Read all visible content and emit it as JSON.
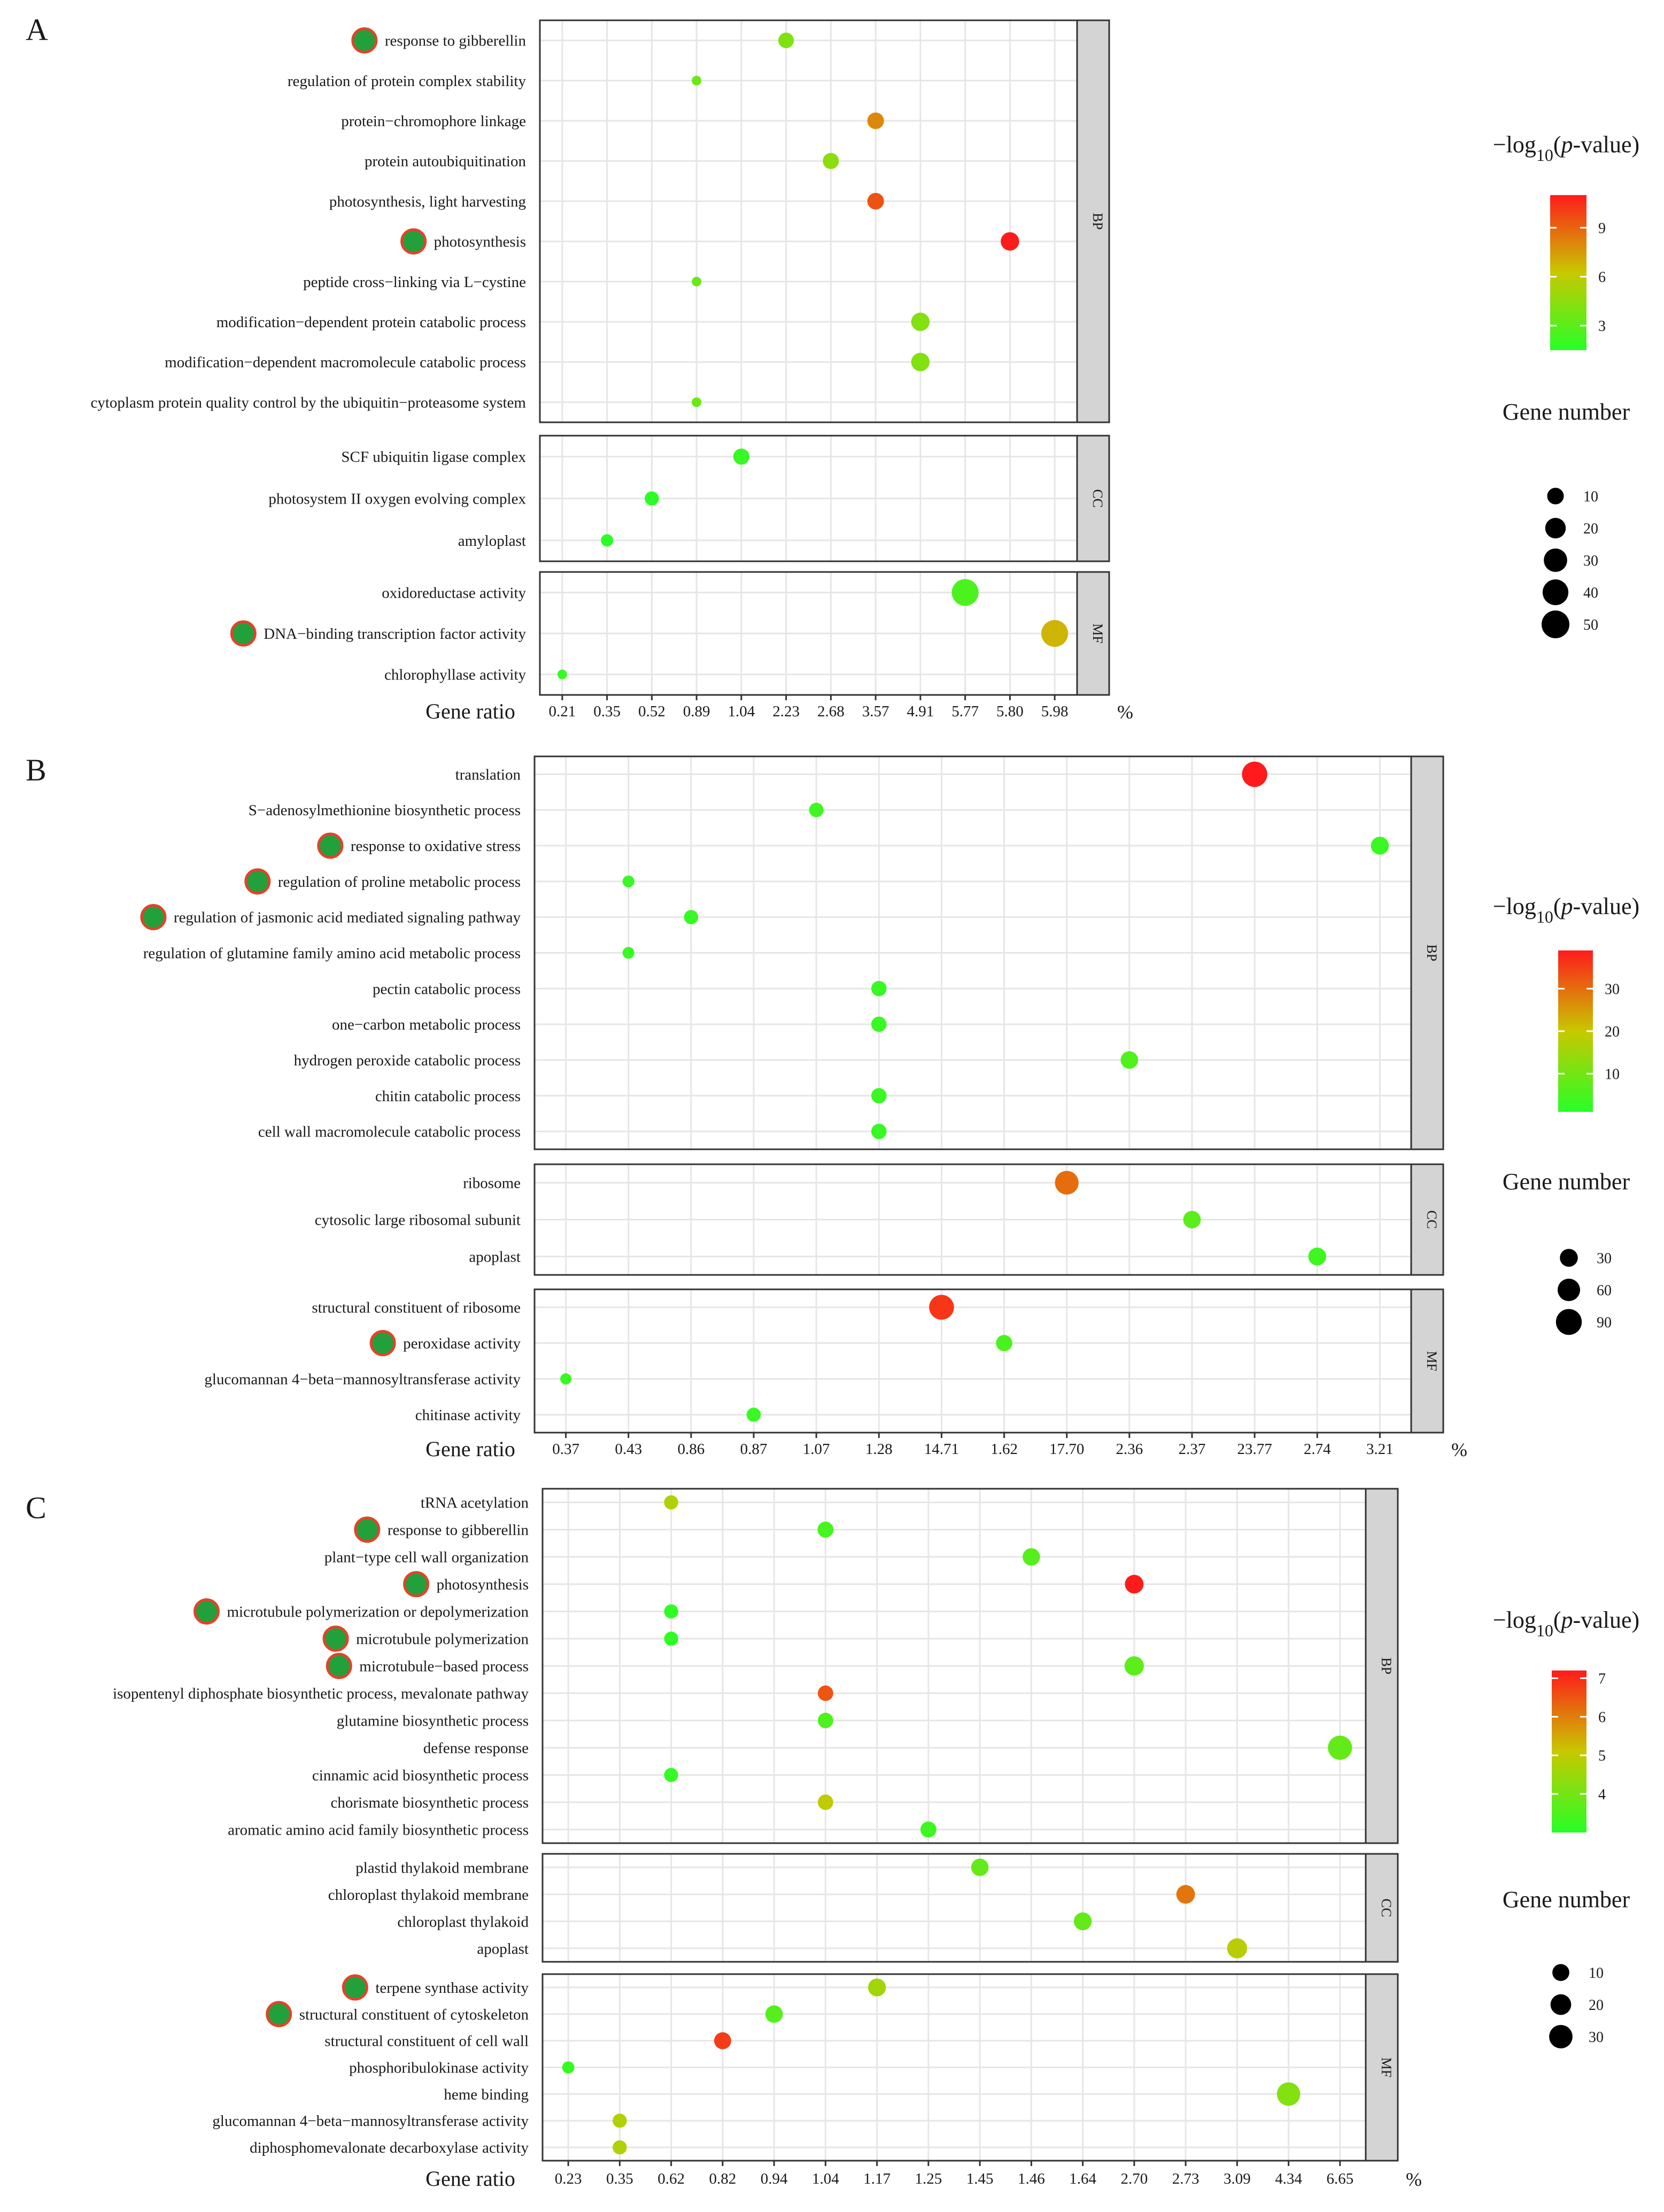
{
  "chart_data": [
    {
      "panel": "A",
      "type": "scatter",
      "xlabel": "Gene ratio",
      "x_unit": "%",
      "x_ticks": [
        "0.21",
        "0.35",
        "0.52",
        "0.89",
        "1.04",
        "2.23",
        "2.68",
        "3.57",
        "4.91",
        "5.77",
        "5.80",
        "5.98"
      ],
      "legend_color_title": "−log10(p-value)",
      "legend_color_ticks": [
        "3",
        "6",
        "9"
      ],
      "color_range": [
        1.5,
        11
      ],
      "legend_size_title": "Gene number",
      "legend_size_ticks": [
        "10",
        "20",
        "30",
        "40",
        "50"
      ],
      "size_range": [
        3,
        50
      ],
      "facets": [
        {
          "label": "BP",
          "terms": [
            {
              "term": "response to gibberellin",
              "ratio": "2.23",
              "p": 4.0,
              "n": 8,
              "marked": true
            },
            {
              "term": "regulation of protein complex stability",
              "ratio": "0.89",
              "p": 3.5,
              "n": 3,
              "marked": false
            },
            {
              "term": "protein−chromophore linkage",
              "ratio": "3.57",
              "p": 8.0,
              "n": 10,
              "marked": false
            },
            {
              "term": "protein autoubiquitination",
              "ratio": "2.68",
              "p": 4.5,
              "n": 9,
              "marked": false
            },
            {
              "term": "photosynthesis, light harvesting",
              "ratio": "3.57",
              "p": 9.5,
              "n": 10,
              "marked": false
            },
            {
              "term": "photosynthesis",
              "ratio": "5.80",
              "p": 11.0,
              "n": 14,
              "marked": true
            },
            {
              "term": "peptide cross−linking via L−cystine",
              "ratio": "0.89",
              "p": 3.5,
              "n": 3,
              "marked": false
            },
            {
              "term": "modification−dependent protein catabolic process",
              "ratio": "4.91",
              "p": 4.2,
              "n": 14,
              "marked": false
            },
            {
              "term": "modification−dependent macromolecule catabolic process",
              "ratio": "4.91",
              "p": 4.2,
              "n": 14,
              "marked": false
            },
            {
              "term": "cytoplasm protein quality control by the ubiquitin−proteasome system",
              "ratio": "0.89",
              "p": 3.5,
              "n": 3,
              "marked": false
            }
          ]
        },
        {
          "label": "CC",
          "terms": [
            {
              "term": "SCF ubiquitin ligase complex",
              "ratio": "1.04",
              "p": 2.0,
              "n": 9,
              "marked": false
            },
            {
              "term": "photosystem II oxygen evolving complex",
              "ratio": "0.52",
              "p": 1.6,
              "n": 6,
              "marked": false
            },
            {
              "term": "amyloplast",
              "ratio": "0.35",
              "p": 1.5,
              "n": 4,
              "marked": false
            }
          ]
        },
        {
          "label": "MF",
          "terms": [
            {
              "term": "oxidoreductase activity",
              "ratio": "5.77",
              "p": 2.6,
              "n": 45,
              "marked": false
            },
            {
              "term": "DNA−binding transcription factor activity",
              "ratio": "5.98",
              "p": 6.8,
              "n": 45,
              "marked": true
            },
            {
              "term": "chlorophyllase activity",
              "ratio": "0.21",
              "p": 2.0,
              "n": 3,
              "marked": false
            }
          ]
        }
      ]
    },
    {
      "panel": "B",
      "type": "scatter",
      "xlabel": "Gene ratio",
      "x_unit": "%",
      "x_ticks": [
        "0.37",
        "0.43",
        "0.86",
        "0.87",
        "1.07",
        "1.28",
        "14.71",
        "1.62",
        "17.70",
        "2.36",
        "2.37",
        "23.77",
        "2.74",
        "3.21"
      ],
      "legend_color_title": "−log10(p-value)",
      "legend_color_ticks": [
        "10",
        "20",
        "30"
      ],
      "color_range": [
        1,
        39
      ],
      "legend_size_title": "Gene number",
      "legend_size_ticks": [
        "30",
        "60",
        "90"
      ],
      "size_range": [
        5,
        110
      ],
      "facets": [
        {
          "label": "BP",
          "terms": [
            {
              "term": "translation",
              "ratio": "23.77",
              "p": 39,
              "n": 85,
              "marked": false
            },
            {
              "term": "S−adenosylmethionine biosynthetic process",
              "ratio": "1.07",
              "p": 4,
              "n": 15,
              "marked": false
            },
            {
              "term": "response to oxidative stress",
              "ratio": "3.21",
              "p": 3,
              "n": 30,
              "marked": true
            },
            {
              "term": "regulation of proline metabolic process",
              "ratio": "0.43",
              "p": 3,
              "n": 8,
              "marked": true
            },
            {
              "term": "regulation of jasmonic acid mediated signaling pathway",
              "ratio": "0.86",
              "p": 3,
              "n": 14,
              "marked": true
            },
            {
              "term": "regulation of glutamine family amino acid metabolic process",
              "ratio": "0.43",
              "p": 3,
              "n": 8,
              "marked": false
            },
            {
              "term": "pectin catabolic process",
              "ratio": "1.28",
              "p": 3,
              "n": 18,
              "marked": false
            },
            {
              "term": "one−carbon metabolic process",
              "ratio": "1.28",
              "p": 3,
              "n": 18,
              "marked": false
            },
            {
              "term": "hydrogen peroxide catabolic process",
              "ratio": "2.36",
              "p": 6,
              "n": 28,
              "marked": false
            },
            {
              "term": "chitin catabolic process",
              "ratio": "1.28",
              "p": 3,
              "n": 18,
              "marked": false
            },
            {
              "term": "cell wall macromolecule catabolic process",
              "ratio": "1.28",
              "p": 3,
              "n": 18,
              "marked": false
            }
          ]
        },
        {
          "label": "CC",
          "terms": [
            {
              "term": "ribosome",
              "ratio": "17.70",
              "p": 30,
              "n": 70,
              "marked": false
            },
            {
              "term": "cytosolic large ribosomal subunit",
              "ratio": "2.37",
              "p": 7,
              "n": 28,
              "marked": false
            },
            {
              "term": "apoplast",
              "ratio": "2.74",
              "p": 4,
              "n": 30,
              "marked": false
            }
          ]
        },
        {
          "label": "MF",
          "terms": [
            {
              "term": "structural constituent of ribosome",
              "ratio": "14.71",
              "p": 36,
              "n": 80,
              "marked": false
            },
            {
              "term": "peroxidase activity",
              "ratio": "1.62",
              "p": 5,
              "n": 22,
              "marked": true
            },
            {
              "term": "glucomannan 4−beta−mannosyltransferase activity",
              "ratio": "0.37",
              "p": 3,
              "n": 7,
              "marked": false
            },
            {
              "term": "chitinase activity",
              "ratio": "0.87",
              "p": 3,
              "n": 14,
              "marked": false
            }
          ]
        }
      ]
    },
    {
      "panel": "C",
      "type": "scatter",
      "xlabel": "Gene ratio",
      "x_unit": "%",
      "x_ticks": [
        "0.23",
        "0.35",
        "0.62",
        "0.82",
        "0.94",
        "1.04",
        "1.17",
        "1.25",
        "1.45",
        "1.46",
        "1.64",
        "2.70",
        "2.73",
        "3.09",
        "4.34",
        "6.65"
      ],
      "legend_color_title": "−log10(p-value)",
      "legend_color_ticks": [
        "4",
        "5",
        "6",
        "7"
      ],
      "color_range": [
        3,
        7.2
      ],
      "legend_size_title": "Gene number",
      "legend_size_ticks": [
        "10",
        "20",
        "30"
      ],
      "size_range": [
        2,
        35
      ],
      "facets": [
        {
          "label": "BP",
          "terms": [
            {
              "term": "tRNA acetylation",
              "ratio": "0.62",
              "p": 4.8,
              "n": 5,
              "marked": false
            },
            {
              "term": "response to gibberellin",
              "ratio": "1.04",
              "p": 3.4,
              "n": 8,
              "marked": true
            },
            {
              "term": "plant−type cell wall organization",
              "ratio": "1.46",
              "p": 3.6,
              "n": 11,
              "marked": false
            },
            {
              "term": "photosynthesis",
              "ratio": "2.70",
              "p": 7.2,
              "n": 14,
              "marked": true
            },
            {
              "term": "microtubule polymerization or depolymerization",
              "ratio": "0.62",
              "p": 3.1,
              "n": 5,
              "marked": true
            },
            {
              "term": "microtubule polymerization",
              "ratio": "0.62",
              "p": 3.1,
              "n": 5,
              "marked": true
            },
            {
              "term": "microtubule−based process",
              "ratio": "2.70",
              "p": 3.7,
              "n": 16,
              "marked": true
            },
            {
              "term": "isopentenyl diphosphate biosynthetic process, mevalonate pathway",
              "ratio": "1.04",
              "p": 6.5,
              "n": 7,
              "marked": false
            },
            {
              "term": "glutamine biosynthetic process",
              "ratio": "1.04",
              "p": 3.5,
              "n": 7,
              "marked": false
            },
            {
              "term": "defense response",
              "ratio": "6.65",
              "p": 3.8,
              "n": 33,
              "marked": false
            },
            {
              "term": "cinnamic acid biosynthetic process",
              "ratio": "0.62",
              "p": 3.2,
              "n": 5,
              "marked": false
            },
            {
              "term": "chorismate biosynthetic process",
              "ratio": "1.04",
              "p": 5.0,
              "n": 7,
              "marked": false
            },
            {
              "term": "aromatic amino acid family biosynthetic process",
              "ratio": "1.25",
              "p": 3.3,
              "n": 8,
              "marked": false
            }
          ]
        },
        {
          "label": "CC",
          "terms": [
            {
              "term": "plastid thylakoid membrane",
              "ratio": "1.45",
              "p": 3.8,
              "n": 11,
              "marked": false
            },
            {
              "term": "chloroplast thylakoid membrane",
              "ratio": "2.73",
              "p": 6.1,
              "n": 14,
              "marked": false
            },
            {
              "term": "chloroplast thylakoid",
              "ratio": "1.64",
              "p": 3.8,
              "n": 12,
              "marked": false
            },
            {
              "term": "apoplast",
              "ratio": "3.09",
              "p": 4.9,
              "n": 18,
              "marked": false
            }
          ]
        },
        {
          "label": "MF",
          "terms": [
            {
              "term": "terpene synthase activity",
              "ratio": "1.17",
              "p": 4.6,
              "n": 12,
              "marked": true
            },
            {
              "term": "structural constituent of cytoskeleton",
              "ratio": "0.94",
              "p": 3.6,
              "n": 11,
              "marked": true
            },
            {
              "term": "structural constituent of cell wall",
              "ratio": "0.82",
              "p": 6.8,
              "n": 10,
              "marked": false
            },
            {
              "term": "phosphoribulokinase activity",
              "ratio": "0.23",
              "p": 3.2,
              "n": 3,
              "marked": false
            },
            {
              "term": "heme binding",
              "ratio": "4.34",
              "p": 4.2,
              "n": 30,
              "marked": false
            },
            {
              "term": "glucomannan 4−beta−mannosyltransferase activity",
              "ratio": "0.35",
              "p": 4.8,
              "n": 5,
              "marked": false
            },
            {
              "term": "diphosphomevalonate decarboxylase activity",
              "ratio": "0.35",
              "p": 4.8,
              "n": 5,
              "marked": false
            }
          ]
        }
      ]
    }
  ],
  "colors": {
    "low": "#27ff27",
    "mid": "#c8c800",
    "high": "#ff1b1b",
    "marker_fill": "#22a03c",
    "marker_stroke": "#e0442a",
    "grid": "#e6e6e6",
    "strip": "#d4d4d4"
  }
}
